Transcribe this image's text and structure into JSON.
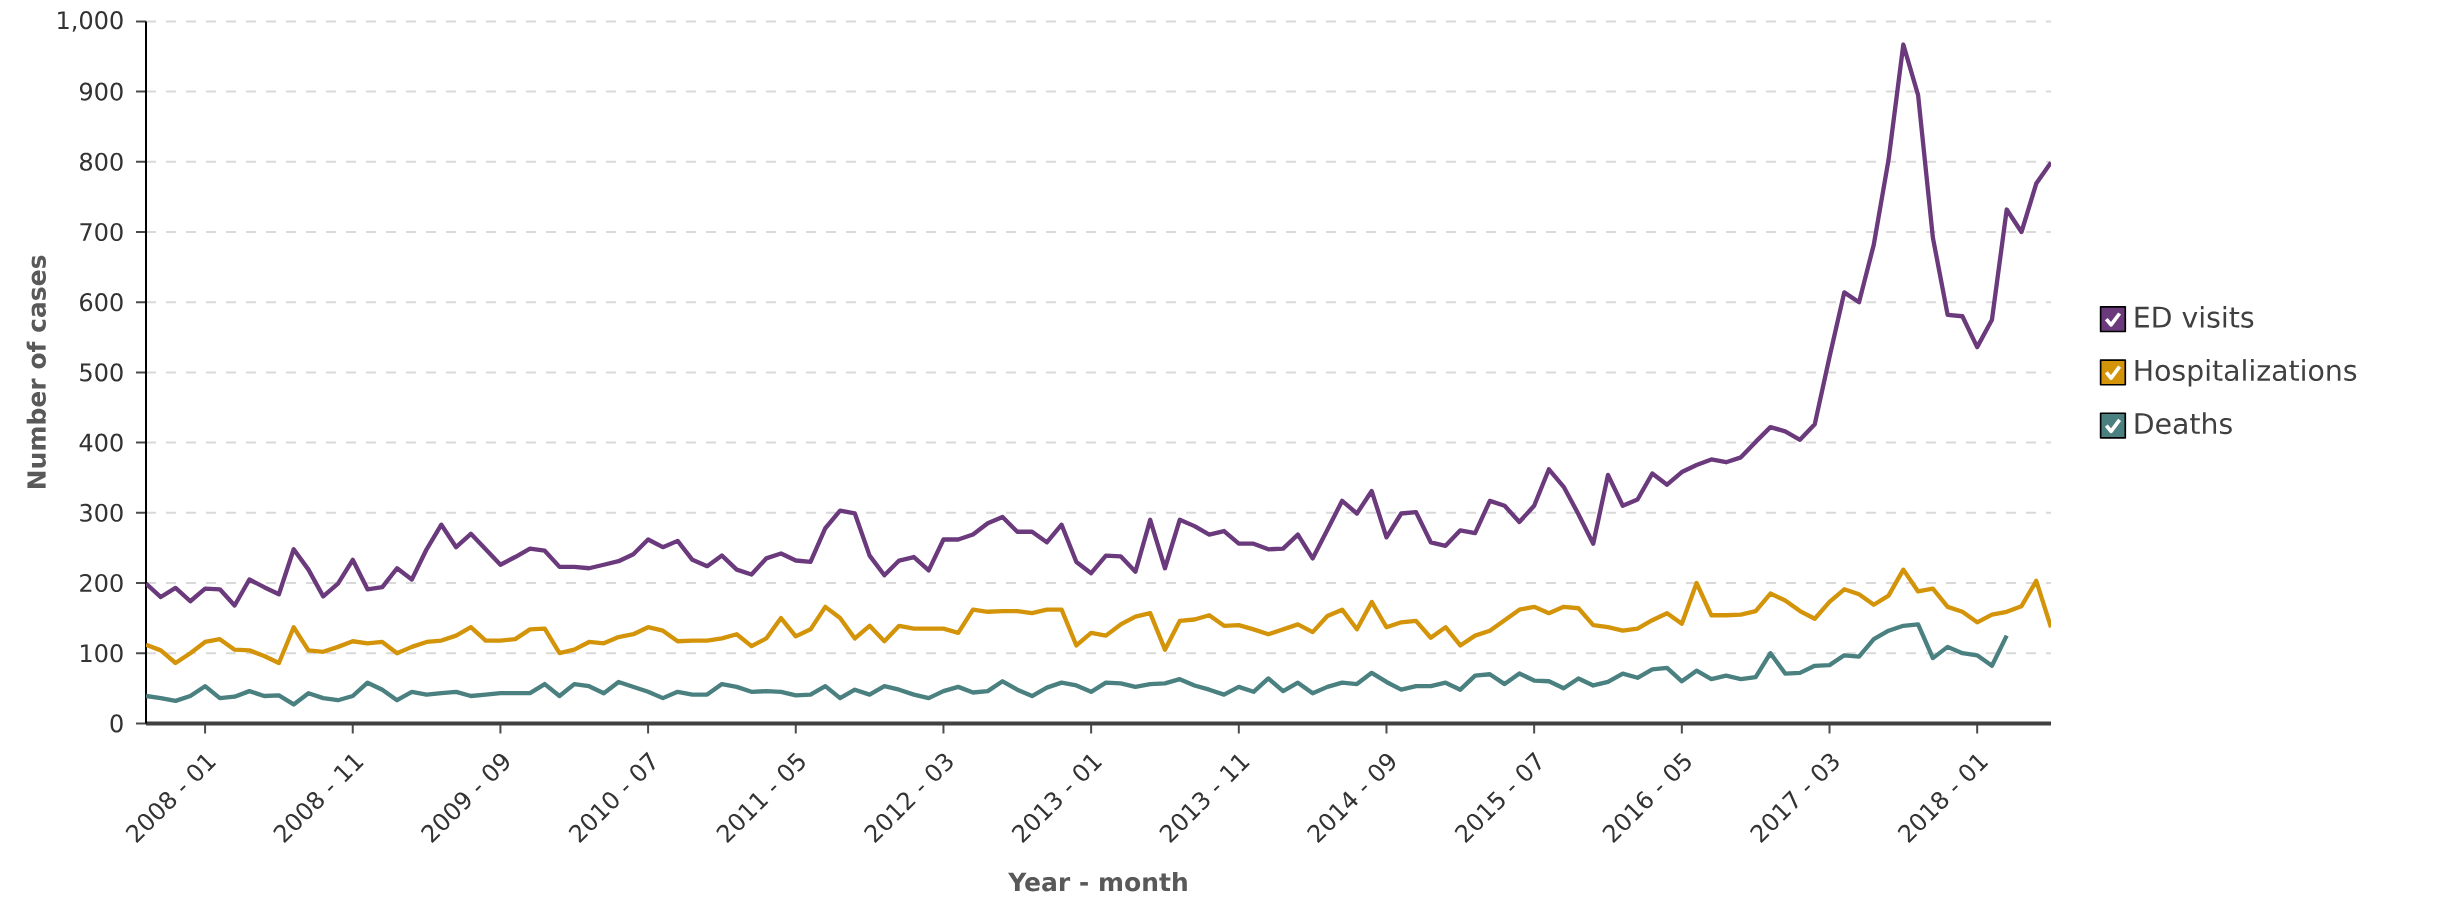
{
  "chart_data": {
    "type": "line",
    "xlabel": "Year - month",
    "ylabel": "Number of cases",
    "x": [
      "2007-09",
      "2007-10",
      "2007-11",
      "2007-12",
      "2008-01",
      "2008-02",
      "2008-03",
      "2008-04",
      "2008-05",
      "2008-06",
      "2008-07",
      "2008-08",
      "2008-09",
      "2008-10",
      "2008-11",
      "2008-12",
      "2009-01",
      "2009-02",
      "2009-03",
      "2009-04",
      "2009-05",
      "2009-06",
      "2009-07",
      "2009-08",
      "2009-09",
      "2009-10",
      "2009-11",
      "2009-12",
      "2010-01",
      "2010-02",
      "2010-03",
      "2010-04",
      "2010-05",
      "2010-06",
      "2010-07",
      "2010-08",
      "2010-09",
      "2010-10",
      "2010-11",
      "2010-12",
      "2011-01",
      "2011-02",
      "2011-03",
      "2011-04",
      "2011-05",
      "2011-06",
      "2011-07",
      "2011-08",
      "2011-09",
      "2011-10",
      "2011-11",
      "2011-12",
      "2012-01",
      "2012-02",
      "2012-03",
      "2012-04",
      "2012-05",
      "2012-06",
      "2012-07",
      "2012-08",
      "2012-09",
      "2012-10",
      "2012-11",
      "2012-12",
      "2013-01",
      "2013-02",
      "2013-03",
      "2013-04",
      "2013-05",
      "2013-06",
      "2013-07",
      "2013-08",
      "2013-09",
      "2013-10",
      "2013-11",
      "2013-12",
      "2014-01",
      "2014-02",
      "2014-03",
      "2014-04",
      "2014-05",
      "2014-06",
      "2014-07",
      "2014-08",
      "2014-09",
      "2014-10",
      "2014-11",
      "2014-12",
      "2015-01",
      "2015-02",
      "2015-03",
      "2015-04",
      "2015-05",
      "2015-06",
      "2015-07",
      "2015-08",
      "2015-09",
      "2015-10",
      "2015-11",
      "2015-12",
      "2016-01",
      "2016-02",
      "2016-03",
      "2016-04",
      "2016-05",
      "2016-06",
      "2016-07",
      "2016-08",
      "2016-09",
      "2016-10",
      "2016-11",
      "2016-12",
      "2017-01",
      "2017-02",
      "2017-03",
      "2017-04",
      "2017-05",
      "2017-06",
      "2017-07",
      "2017-08",
      "2017-09",
      "2017-10",
      "2017-11",
      "2017-12",
      "2018-01",
      "2018-02",
      "2018-03",
      "2018-04",
      "2018-05",
      "2018-06"
    ],
    "xlim": [
      "2007-09",
      "2018-06"
    ],
    "xticks": [
      {
        "value": "2008-01",
        "label": "2008 - 01"
      },
      {
        "value": "2008-11",
        "label": "2008 - 11"
      },
      {
        "value": "2009-09",
        "label": "2009 - 09"
      },
      {
        "value": "2010-07",
        "label": "2010 - 07"
      },
      {
        "value": "2011-05",
        "label": "2011 - 05"
      },
      {
        "value": "2012-03",
        "label": "2012 - 03"
      },
      {
        "value": "2013-01",
        "label": "2013 - 01"
      },
      {
        "value": "2013-11",
        "label": "2013 - 11"
      },
      {
        "value": "2014-09",
        "label": "2014 - 09"
      },
      {
        "value": "2015-07",
        "label": "2015 - 07"
      },
      {
        "value": "2016-05",
        "label": "2016 - 05"
      },
      {
        "value": "2017-03",
        "label": "2017 - 03"
      },
      {
        "value": "2018-01",
        "label": "2018 - 01"
      }
    ],
    "ylim": [
      0,
      1000
    ],
    "yticks": [
      0,
      100,
      200,
      300,
      400,
      500,
      600,
      700,
      800,
      900,
      {
        "value": 1000,
        "label": "1,000"
      }
    ],
    "grid": "y",
    "legend": "right",
    "marker": "none",
    "line_style": "solid",
    "series": [
      {
        "name": "ED visits",
        "color": "#6b3a7d",
        "values": [
          199,
          180,
          193,
          174,
          192,
          191,
          168,
          205,
          194,
          184,
          248,
          219,
          181,
          199,
          233,
          191,
          194,
          221,
          205,
          248,
          283,
          251,
          270,
          248,
          226,
          237,
          249,
          246,
          223,
          223,
          221,
          226,
          231,
          241,
          262,
          251,
          260,
          233,
          224,
          239,
          219,
          212,
          235,
          242,
          232,
          230,
          278,
          303,
          299,
          239,
          211,
          232,
          237,
          218,
          262,
          262,
          269,
          285,
          294,
          273,
          273,
          258,
          283,
          230,
          214,
          239,
          238,
          216,
          290,
          221,
          290,
          281,
          269,
          274,
          256,
          256,
          248,
          249,
          269,
          235,
          276,
          317,
          299,
          331,
          265,
          299,
          301,
          258,
          253,
          275,
          271,
          317,
          310,
          287,
          310,
          362,
          337,
          298,
          256,
          354,
          310,
          319,
          356,
          340,
          358,
          368,
          376,
          372,
          379,
          401,
          422,
          416,
          404,
          426,
          522,
          614,
          600,
          682,
          803,
          967,
          895,
          692,
          582,
          580,
          536,
          575,
          732,
          700,
          769,
          799
        ]
      },
      {
        "name": "Hospitalizations",
        "color": "#d4940a",
        "values": [
          112,
          104,
          86,
          100,
          116,
          120,
          105,
          104,
          96,
          86,
          137,
          104,
          102,
          109,
          117,
          114,
          116,
          100,
          109,
          116,
          118,
          125,
          137,
          118,
          118,
          120,
          134,
          135,
          100,
          105,
          116,
          114,
          123,
          127,
          137,
          132,
          117,
          118,
          118,
          121,
          127,
          110,
          121,
          150,
          124,
          134,
          166,
          150,
          121,
          139,
          117,
          139,
          135,
          135,
          135,
          129,
          162,
          159,
          160,
          160,
          157,
          162,
          162,
          111,
          129,
          125,
          141,
          152,
          157,
          105,
          146,
          148,
          154,
          139,
          140,
          134,
          127,
          134,
          141,
          130,
          153,
          162,
          134,
          173,
          137,
          144,
          146,
          122,
          137,
          111,
          125,
          132,
          147,
          162,
          166,
          157,
          166,
          164,
          140,
          137,
          132,
          135,
          147,
          157,
          142,
          200,
          154,
          154,
          155,
          160,
          185,
          175,
          160,
          149,
          173,
          191,
          184,
          169,
          182,
          219,
          188,
          192,
          166,
          159,
          144,
          155,
          159,
          167,
          203,
          137
        ]
      },
      {
        "name": "Deaths",
        "color": "#4a8080",
        "values": [
          39,
          36,
          32,
          39,
          53,
          36,
          38,
          46,
          39,
          40,
          27,
          43,
          36,
          33,
          39,
          58,
          48,
          33,
          45,
          41,
          43,
          45,
          39,
          41,
          43,
          43,
          43,
          56,
          39,
          56,
          53,
          43,
          59,
          52,
          45,
          36,
          45,
          41,
          41,
          56,
          52,
          45,
          46,
          45,
          40,
          41,
          53,
          36,
          48,
          41,
          53,
          48,
          41,
          36,
          46,
          52,
          44,
          46,
          60,
          48,
          39,
          51,
          58,
          54,
          45,
          58,
          57,
          52,
          56,
          57,
          63,
          54,
          48,
          41,
          52,
          45,
          64,
          46,
          58,
          43,
          52,
          58,
          56,
          72,
          59,
          48,
          53,
          53,
          58,
          48,
          68,
          70,
          56,
          71,
          61,
          60,
          50,
          64,
          54,
          59,
          71,
          65,
          77,
          79,
          60,
          75,
          63,
          68,
          63,
          66,
          100,
          71,
          72,
          82,
          83,
          97,
          95,
          120,
          132,
          139,
          141,
          93,
          109,
          100,
          97,
          82,
          125,
          null,
          null,
          null
        ]
      }
    ]
  }
}
